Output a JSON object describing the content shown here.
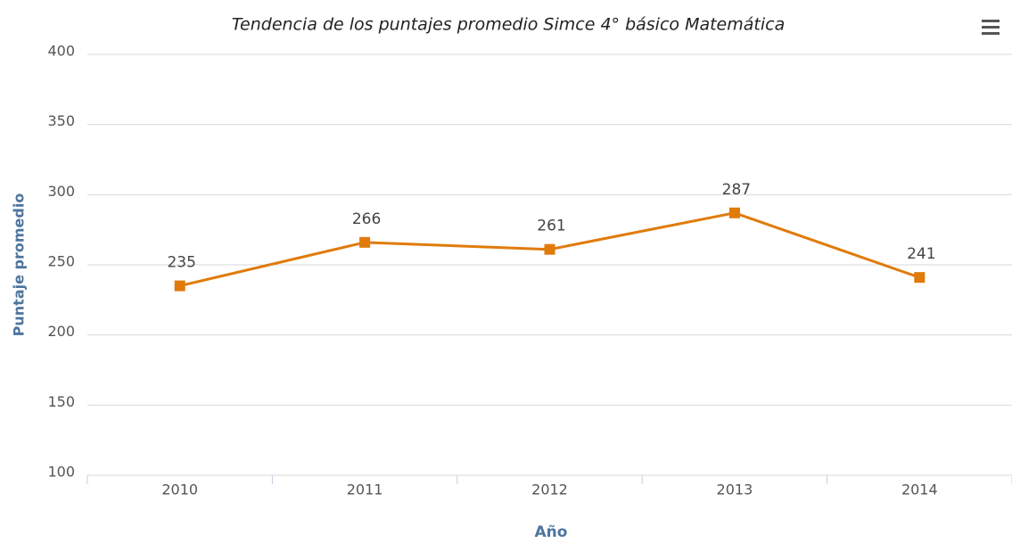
{
  "chart_data": {
    "type": "line",
    "title": "Tendencia de los puntajes promedio Simce 4° básico Matemática",
    "xlabel": "Año",
    "ylabel": "Puntaje promedio",
    "categories": [
      "2010",
      "2011",
      "2012",
      "2013",
      "2014"
    ],
    "series": [
      {
        "name": "Puntaje promedio",
        "color": "#e07b0a",
        "values": [
          235,
          266,
          261,
          287,
          241
        ]
      }
    ],
    "ylim": [
      100,
      400
    ],
    "yticks": [
      100,
      150,
      200,
      250,
      300,
      350,
      400
    ],
    "grid": true
  }
}
